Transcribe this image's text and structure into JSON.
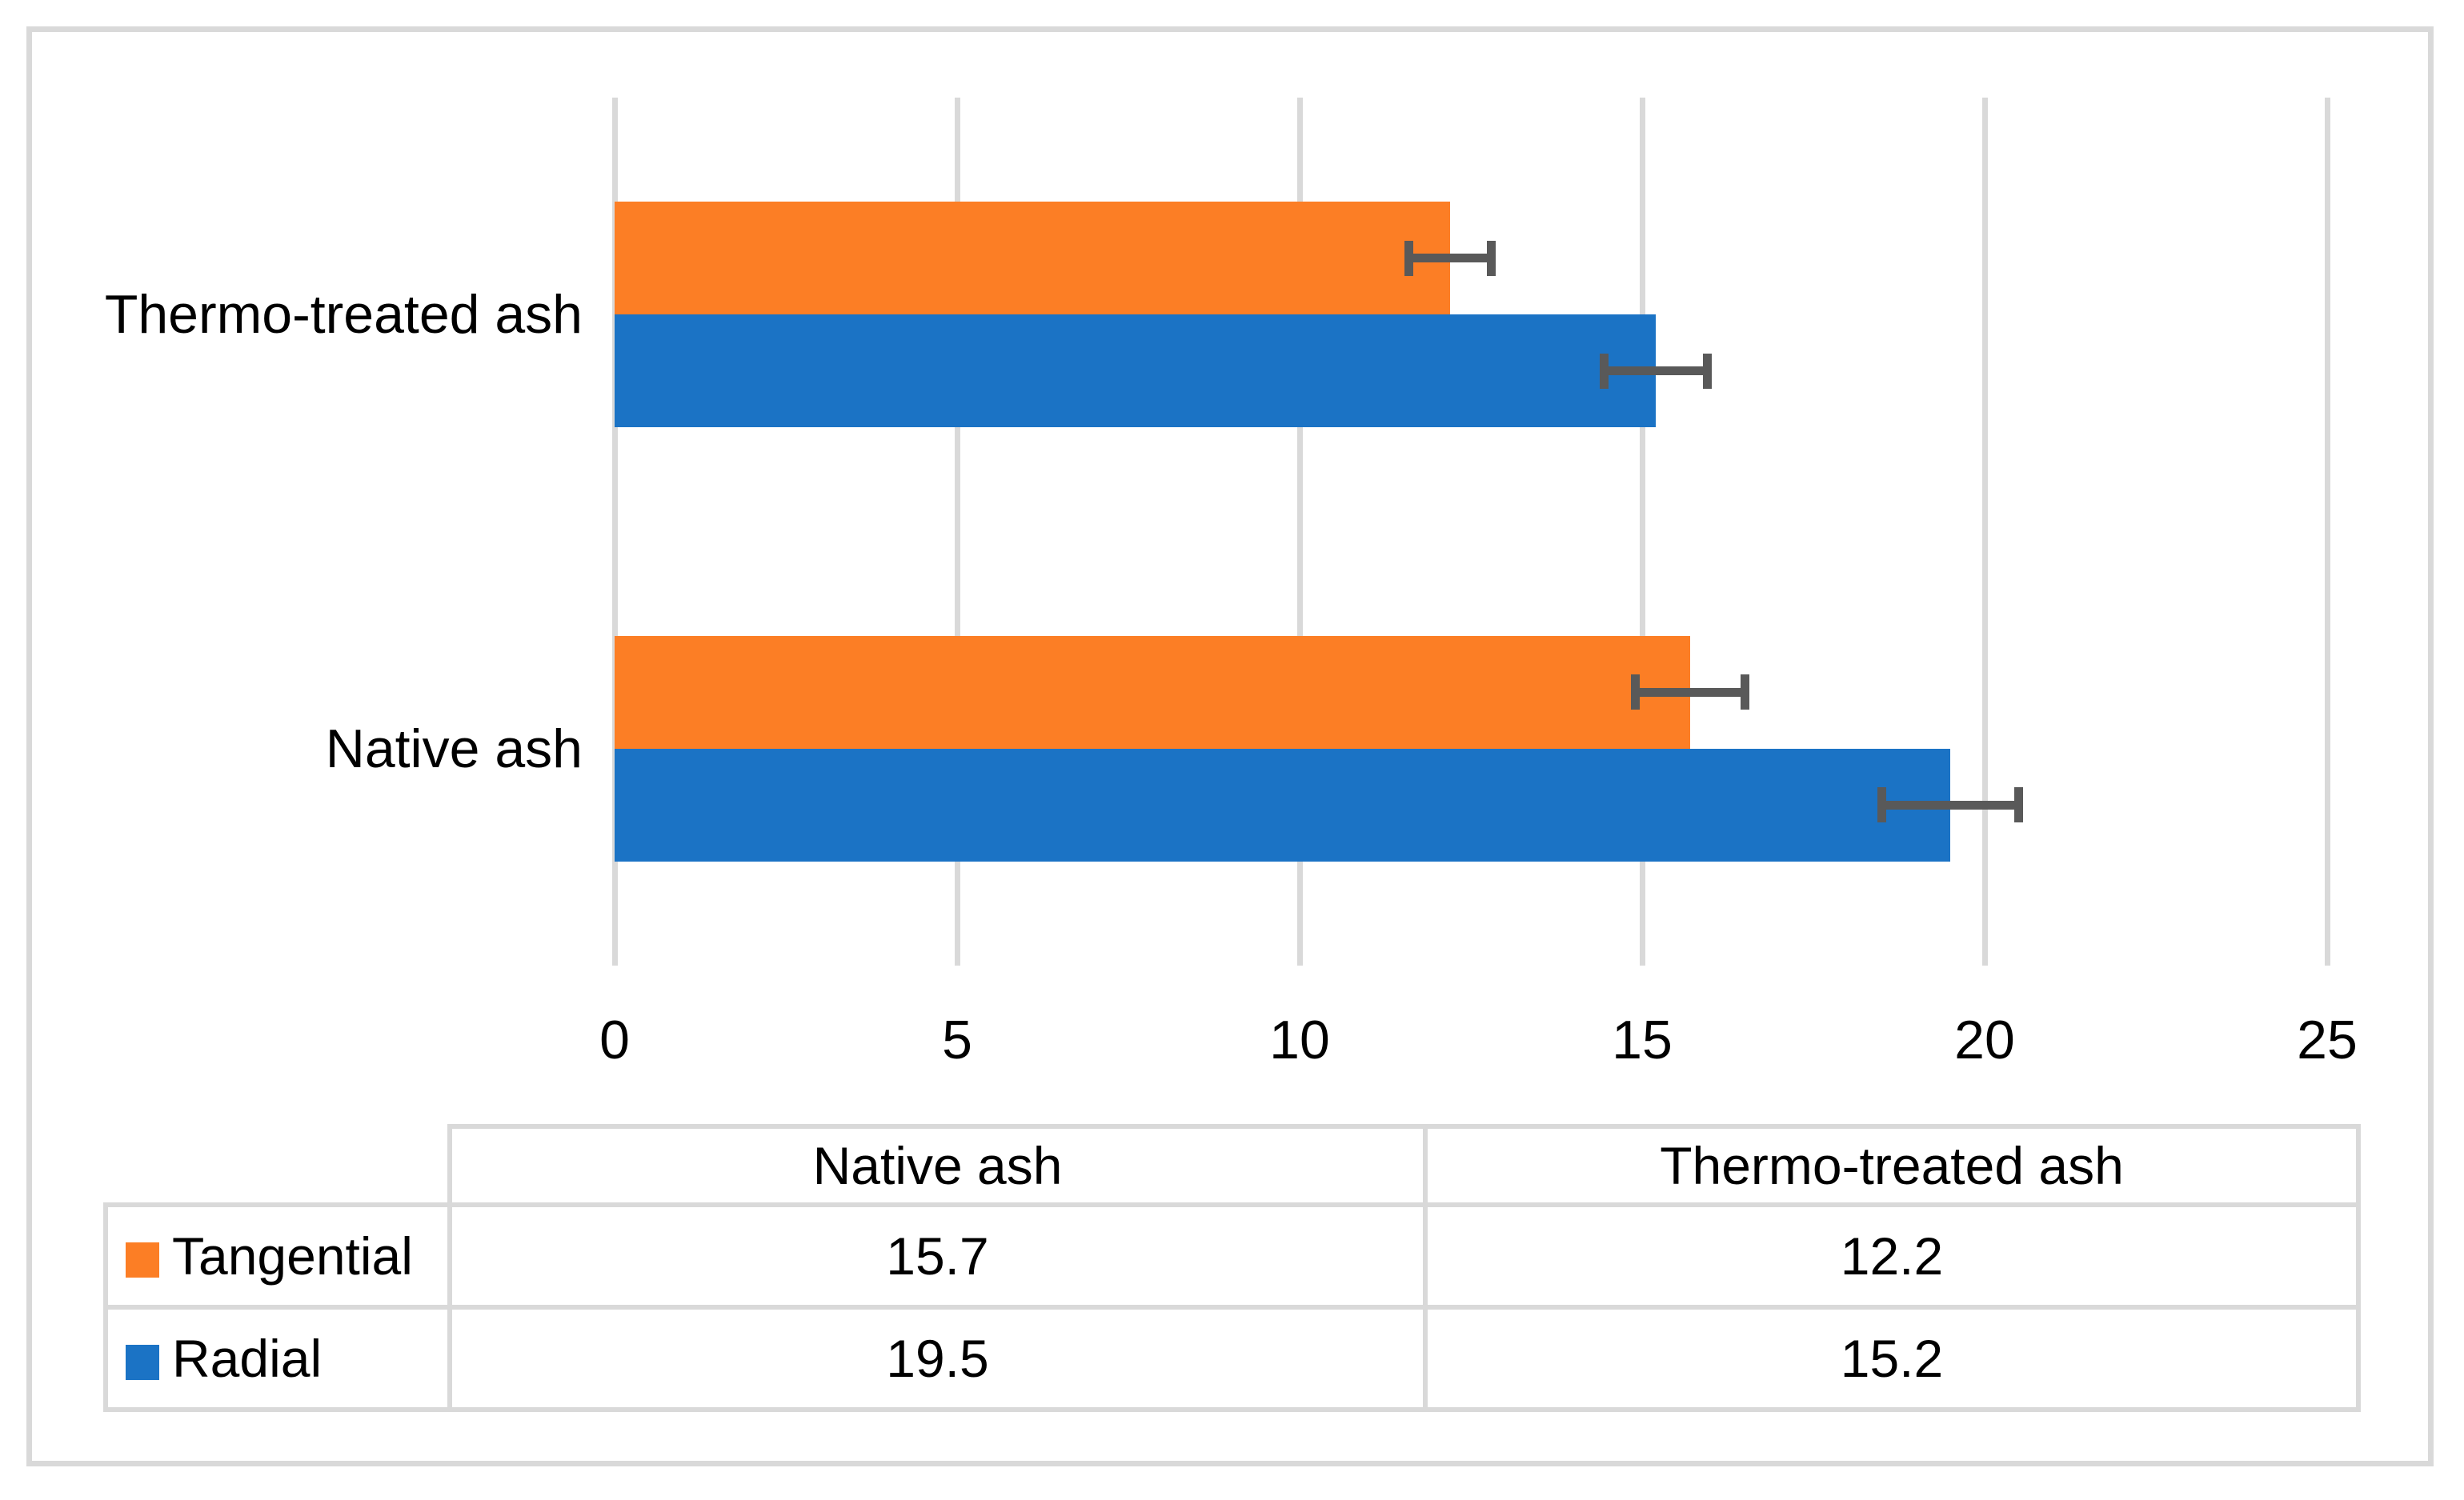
{
  "chart_data": {
    "type": "bar",
    "orientation": "horizontal",
    "title": "",
    "xlabel": "",
    "ylabel": "",
    "categories": [
      "Native ash",
      "Thermo-treated ash"
    ],
    "category_display_order_top_to_bottom": [
      "Thermo-treated ash",
      "Native ash"
    ],
    "series": [
      {
        "name": "Tangential",
        "color": "#FC7E25",
        "values": [
          15.7,
          12.2
        ],
        "error_bars": [
          0.8,
          0.6
        ]
      },
      {
        "name": "Radial",
        "color": "#1B73C5",
        "values": [
          19.5,
          15.2
        ],
        "error_bars": [
          1.0,
          0.75
        ]
      }
    ],
    "x_axis": {
      "min": 0,
      "max": 25,
      "tick_interval": 5,
      "tick_labels": [
        "0",
        "5",
        "10",
        "15",
        "20",
        "25"
      ]
    },
    "gridlines": {
      "show": true,
      "color": "#D9D9D9"
    },
    "error_bar_color": "#595959",
    "legend_position": "data-table-left-column",
    "ylim_note": "two category bands, clustered bars, error bars with caps"
  },
  "data_table": {
    "corner_cell": "",
    "column_headers": [
      "Native ash",
      "Thermo-treated ash"
    ],
    "rows": [
      {
        "label": "Tangential",
        "swatch_color": "#FC7E25",
        "values": [
          "15.7",
          "12.2"
        ]
      },
      {
        "label": "Radial",
        "swatch_color": "#1B73C5",
        "values": [
          "19.5",
          "15.2"
        ]
      }
    ],
    "border_color": "#D9D9D9"
  },
  "styles": {
    "figure_border_color": "#D9D9D9",
    "background": "#FFFFFF",
    "text_color": "#000000"
  }
}
